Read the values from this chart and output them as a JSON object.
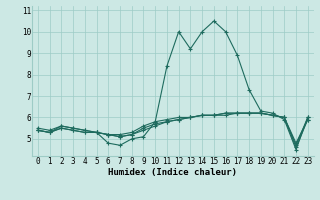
{
  "xlabel": "Humidex (Indice chaleur)",
  "ylabel": "",
  "x_values": [
    0,
    1,
    2,
    3,
    4,
    5,
    6,
    7,
    8,
    9,
    10,
    11,
    12,
    13,
    14,
    15,
    16,
    17,
    18,
    19,
    20,
    21,
    22,
    23
  ],
  "series": [
    [
      5.4,
      5.3,
      5.6,
      5.5,
      5.4,
      5.3,
      4.8,
      4.7,
      5.0,
      5.1,
      5.8,
      8.4,
      10.0,
      9.2,
      10.0,
      10.5,
      10.0,
      8.9,
      7.3,
      6.3,
      6.2,
      5.9,
      4.5,
      6.0
    ],
    [
      5.4,
      5.3,
      5.5,
      5.4,
      5.3,
      5.3,
      5.2,
      5.1,
      5.2,
      5.5,
      5.7,
      5.8,
      5.9,
      6.0,
      6.1,
      6.1,
      6.2,
      6.2,
      6.2,
      6.2,
      6.1,
      6.0,
      4.7,
      6.0
    ],
    [
      5.4,
      5.3,
      5.5,
      5.4,
      5.3,
      5.3,
      5.2,
      5.2,
      5.3,
      5.6,
      5.8,
      5.9,
      6.0,
      6.0,
      6.1,
      6.1,
      6.1,
      6.2,
      6.2,
      6.2,
      6.1,
      6.0,
      4.8,
      5.9
    ],
    [
      5.5,
      5.4,
      5.6,
      5.5,
      5.4,
      5.3,
      5.2,
      5.1,
      5.2,
      5.4,
      5.6,
      5.8,
      5.9,
      6.0,
      6.1,
      6.1,
      6.2,
      6.2,
      6.2,
      6.2,
      6.1,
      6.0,
      4.6,
      5.9
    ]
  ],
  "line_color": "#1e6b5e",
  "bg_color": "#cce8e4",
  "grid_color": "#9eccc6",
  "ylim": [
    4.2,
    11.2
  ],
  "yticks": [
    5,
    6,
    7,
    8,
    9,
    10,
    11
  ],
  "xticks": [
    0,
    1,
    2,
    3,
    4,
    5,
    6,
    7,
    8,
    9,
    10,
    11,
    12,
    13,
    14,
    15,
    16,
    17,
    18,
    19,
    20,
    21,
    22,
    23
  ],
  "marker": "+",
  "linewidth": 0.8,
  "markersize": 3,
  "markeredgewidth": 0.8,
  "xlabel_fontsize": 6.5,
  "tick_fontsize": 5.5
}
